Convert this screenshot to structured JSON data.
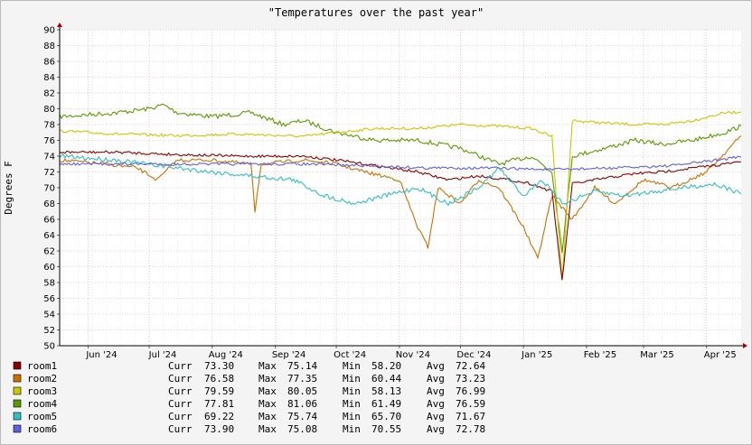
{
  "chart_data": {
    "type": "line",
    "title": "\"Temperatures over the past year\"",
    "ylabel": "Degrees F",
    "xlabel": "",
    "ylim": [
      50,
      90
    ],
    "yticks": [
      50,
      52,
      54,
      56,
      58,
      60,
      62,
      64,
      66,
      68,
      70,
      72,
      74,
      76,
      78,
      80,
      82,
      84,
      86,
      88,
      90
    ],
    "xlim": [
      "2024-05-18",
      "2025-04-18"
    ],
    "xticks": [
      {
        "date": "2024-06-01",
        "label": "Jun '24"
      },
      {
        "date": "2024-07-01",
        "label": "Jul '24"
      },
      {
        "date": "2024-08-01",
        "label": "Aug '24"
      },
      {
        "date": "2024-09-01",
        "label": "Sep '24"
      },
      {
        "date": "2024-10-01",
        "label": "Oct '24"
      },
      {
        "date": "2024-11-01",
        "label": "Nov '24"
      },
      {
        "date": "2024-12-01",
        "label": "Dec '24"
      },
      {
        "date": "2025-01-01",
        "label": "Jan '25"
      },
      {
        "date": "2025-02-01",
        "label": "Feb '25"
      },
      {
        "date": "2025-03-01",
        "label": "Mar '25"
      },
      {
        "date": "2025-04-01",
        "label": "Apr '25"
      }
    ],
    "grid": true,
    "legend_position": "bottom-left",
    "series": [
      {
        "name": "room1",
        "color": "#8b0000",
        "curr": "73.30",
        "max": "75.14",
        "min": "58.20",
        "avg": "72.64",
        "points": [
          [
            "2024-05-18",
            74.5
          ],
          [
            "2024-06-15",
            74.5
          ],
          [
            "2024-07-15",
            74.2
          ],
          [
            "2024-08-15",
            74.0
          ],
          [
            "2024-09-15",
            74.0
          ],
          [
            "2024-10-01",
            73.5
          ],
          [
            "2024-10-20",
            72.8
          ],
          [
            "2024-11-10",
            72.0
          ],
          [
            "2024-11-25",
            71.0
          ],
          [
            "2024-12-10",
            71.5
          ],
          [
            "2024-12-25",
            71.0
          ],
          [
            "2025-01-05",
            70.5
          ],
          [
            "2025-01-15",
            69.5
          ],
          [
            "2025-01-20",
            58.2
          ],
          [
            "2025-01-25",
            70.5
          ],
          [
            "2025-02-10",
            71.2
          ],
          [
            "2025-02-25",
            71.8
          ],
          [
            "2025-03-10",
            72.0
          ],
          [
            "2025-03-25",
            72.5
          ],
          [
            "2025-04-10",
            73.0
          ],
          [
            "2025-04-18",
            73.3
          ]
        ]
      },
      {
        "name": "room2",
        "color": "#cc7000",
        "curr": "76.58",
        "max": "77.35",
        "min": "60.44",
        "avg": "73.23",
        "points": [
          [
            "2024-05-18",
            73.5
          ],
          [
            "2024-06-10",
            73.0
          ],
          [
            "2024-06-25",
            72.5
          ],
          [
            "2024-07-05",
            71.0
          ],
          [
            "2024-07-15",
            73.5
          ],
          [
            "2024-08-01",
            73.5
          ],
          [
            "2024-08-20",
            73.0
          ],
          [
            "2024-08-22",
            67.0
          ],
          [
            "2024-08-25",
            73.0
          ],
          [
            "2024-09-15",
            73.5
          ],
          [
            "2024-10-01",
            73.0
          ],
          [
            "2024-10-15",
            72.0
          ],
          [
            "2024-11-01",
            71.0
          ],
          [
            "2024-11-10",
            65.0
          ],
          [
            "2024-11-15",
            62.5
          ],
          [
            "2024-11-20",
            70.0
          ],
          [
            "2024-12-01",
            68.0
          ],
          [
            "2024-12-10",
            71.0
          ],
          [
            "2024-12-20",
            70.0
          ],
          [
            "2025-01-01",
            65.0
          ],
          [
            "2025-01-08",
            61.0
          ],
          [
            "2025-01-15",
            69.0
          ],
          [
            "2025-01-25",
            66.0
          ],
          [
            "2025-02-05",
            70.0
          ],
          [
            "2025-02-15",
            68.0
          ],
          [
            "2025-03-01",
            71.0
          ],
          [
            "2025-03-15",
            70.0
          ],
          [
            "2025-04-01",
            72.0
          ],
          [
            "2025-04-18",
            76.58
          ]
        ]
      },
      {
        "name": "room3",
        "color": "#c8c800",
        "curr": "79.59",
        "max": "80.05",
        "min": "58.13",
        "avg": "76.99",
        "points": [
          [
            "2024-05-18",
            77.2
          ],
          [
            "2024-06-15",
            76.8
          ],
          [
            "2024-07-15",
            76.6
          ],
          [
            "2024-08-15",
            76.8
          ],
          [
            "2024-09-15",
            76.5
          ],
          [
            "2024-10-01",
            77.0
          ],
          [
            "2024-10-20",
            77.5
          ],
          [
            "2024-11-10",
            77.5
          ],
          [
            "2024-12-01",
            78.0
          ],
          [
            "2024-12-20",
            77.8
          ],
          [
            "2025-01-05",
            77.5
          ],
          [
            "2025-01-15",
            76.5
          ],
          [
            "2025-01-20",
            58.13
          ],
          [
            "2025-01-25",
            78.5
          ],
          [
            "2025-02-10",
            78.2
          ],
          [
            "2025-02-25",
            78.0
          ],
          [
            "2025-03-10",
            78.0
          ],
          [
            "2025-03-25",
            78.5
          ],
          [
            "2025-04-10",
            79.5
          ],
          [
            "2025-04-18",
            79.59
          ]
        ]
      },
      {
        "name": "room4",
        "color": "#5a9a00",
        "curr": "77.81",
        "max": "81.06",
        "min": "61.49",
        "avg": "76.59",
        "points": [
          [
            "2024-05-18",
            79.0
          ],
          [
            "2024-06-15",
            79.5
          ],
          [
            "2024-07-01",
            80.0
          ],
          [
            "2024-07-08",
            80.5
          ],
          [
            "2024-07-15",
            79.5
          ],
          [
            "2024-08-01",
            79.0
          ],
          [
            "2024-08-20",
            79.5
          ],
          [
            "2024-09-05",
            78.0
          ],
          [
            "2024-09-15",
            78.5
          ],
          [
            "2024-10-01",
            77.0
          ],
          [
            "2024-10-20",
            76.0
          ],
          [
            "2024-11-10",
            76.0
          ],
          [
            "2024-12-01",
            75.0
          ],
          [
            "2024-12-20",
            73.0
          ],
          [
            "2025-01-05",
            74.0
          ],
          [
            "2025-01-15",
            72.0
          ],
          [
            "2025-01-20",
            62.0
          ],
          [
            "2025-01-25",
            74.0
          ],
          [
            "2025-02-10",
            75.0
          ],
          [
            "2025-02-25",
            76.0
          ],
          [
            "2025-03-10",
            75.5
          ],
          [
            "2025-03-25",
            76.0
          ],
          [
            "2025-04-10",
            77.0
          ],
          [
            "2025-04-18",
            77.81
          ]
        ]
      },
      {
        "name": "room5",
        "color": "#30c0c0",
        "curr": "69.22",
        "max": "75.74",
        "min": "65.70",
        "avg": "71.67",
        "points": [
          [
            "2024-05-18",
            74.0
          ],
          [
            "2024-06-15",
            73.5
          ],
          [
            "2024-07-15",
            72.5
          ],
          [
            "2024-08-01",
            72.0
          ],
          [
            "2024-08-20",
            71.5
          ],
          [
            "2024-09-10",
            71.0
          ],
          [
            "2024-09-25",
            69.0
          ],
          [
            "2024-10-10",
            68.0
          ],
          [
            "2024-10-25",
            69.0
          ],
          [
            "2024-11-10",
            70.0
          ],
          [
            "2024-11-25",
            68.0
          ],
          [
            "2024-12-10",
            70.0
          ],
          [
            "2024-12-20",
            72.5
          ],
          [
            "2025-01-01",
            69.0
          ],
          [
            "2025-01-10",
            71.0
          ],
          [
            "2025-01-20",
            68.0
          ],
          [
            "2025-02-05",
            69.5
          ],
          [
            "2025-02-20",
            69.0
          ],
          [
            "2025-03-05",
            69.5
          ],
          [
            "2025-03-20",
            70.0
          ],
          [
            "2025-04-05",
            70.5
          ],
          [
            "2025-04-18",
            69.22
          ]
        ]
      },
      {
        "name": "room6",
        "color": "#6060e0",
        "curr": "73.90",
        "max": "75.08",
        "min": "70.55",
        "avg": "72.78",
        "points": [
          [
            "2024-05-18",
            73.0
          ],
          [
            "2024-06-15",
            73.0
          ],
          [
            "2024-07-15",
            73.0
          ],
          [
            "2024-08-15",
            73.0
          ],
          [
            "2024-09-15",
            73.0
          ],
          [
            "2024-10-15",
            72.8
          ],
          [
            "2024-11-15",
            72.5
          ],
          [
            "2024-12-15",
            72.5
          ],
          [
            "2025-01-15",
            72.3
          ],
          [
            "2025-02-15",
            72.5
          ],
          [
            "2025-03-15",
            72.8
          ],
          [
            "2025-04-18",
            73.9
          ]
        ]
      }
    ]
  },
  "legend": {
    "curr_label": "Curr",
    "max_label": "Max",
    "min_label": "Min",
    "avg_label": "Avg"
  }
}
